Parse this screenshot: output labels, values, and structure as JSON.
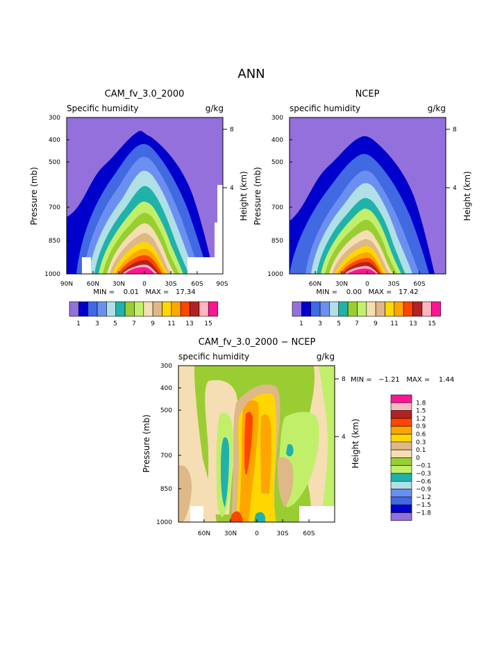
{
  "page": {
    "title": "ANN"
  },
  "colors": {
    "bg": "#9370db",
    "levels": [
      "#9370db",
      "#0000cd",
      "#4169e1",
      "#6b8ff0",
      "#b0e0e6",
      "#20b2aa",
      "#9acd32",
      "#c1ef6a",
      "#f5deb3",
      "#deb887",
      "#ffd700",
      "#ffa500",
      "#ff4500",
      "#b22222",
      "#ffb6c1",
      "#ff1493"
    ],
    "diff_colors": [
      "#9370db",
      "#0000cd",
      "#4169e1",
      "#6b8ff0",
      "#b0e0e6",
      "#20b2aa",
      "#c1ef6a",
      "#9acd32",
      "#f5deb3",
      "#deb887",
      "#ffd700",
      "#ffa500",
      "#ff4500",
      "#b22222",
      "#ffb6c1",
      "#ff1493"
    ]
  },
  "panels": [
    {
      "title": "CAM_fv_3.0_2000",
      "variable": "Specific humidity",
      "units": "g/kg",
      "y_label": "Pressure (mb)",
      "y2_label": "Height (km)",
      "stats": "MIN =    0.01   MAX =   17.34",
      "pressure_ticks": [
        "300",
        "400",
        "500",
        "700",
        "850",
        "1000"
      ],
      "height_ticks": [
        "8",
        "4"
      ],
      "lat_ticks": [
        "90N",
        "60N",
        "30N",
        "0",
        "30S",
        "60S",
        "90S"
      ]
    },
    {
      "title": "NCEP",
      "variable": "specific humidity",
      "units": "g/kg",
      "y_label": "Pressure (mb)",
      "y2_label": "Height (km)",
      "stats": "MIN =    0.00   MAX =   17.42",
      "pressure_ticks": [
        "300",
        "400",
        "500",
        "700",
        "850",
        "1000"
      ],
      "height_ticks": [
        "8",
        "4"
      ],
      "lat_ticks": [
        "60N",
        "30N",
        "0",
        "30S",
        "60S"
      ]
    },
    {
      "title": "CAM_fv_3.0_2000 − NCEP",
      "variable": "specific humidity",
      "units": "g/kg",
      "y_label": "Pressure (mb)",
      "y2_label": "Height (km)",
      "stats": "MIN =   −1.21   MAX =    1.44",
      "pressure_ticks": [
        "300",
        "400",
        "500",
        "700",
        "850",
        "1000"
      ],
      "height_ticks": [
        "8",
        "4"
      ],
      "lat_ticks": [
        "60N",
        "30N",
        "0",
        "30S",
        "60S"
      ]
    }
  ],
  "legends": {
    "field_labels": [
      "1",
      "3",
      "5",
      "7",
      "9",
      "11",
      "13",
      "15"
    ],
    "diff_labels": [
      "1.8",
      "1.5",
      "1.2",
      "0.9",
      "0.6",
      "0.3",
      "0.1",
      "0",
      "−0.1",
      "−0.3",
      "−0.6",
      "−0.9",
      "−1.2",
      "−1.5",
      "−1.8"
    ]
  },
  "chart_data": [
    {
      "type": "heatmap",
      "title": "CAM_fv_3.0_2000",
      "subtitle": "Specific humidity",
      "units": "g/kg",
      "x_axis": "latitude (90N to 90S)",
      "xlim": [
        90,
        -90
      ],
      "y_axis": "Pressure (mb)",
      "ylim": [
        1000,
        300
      ],
      "y_scale": "log",
      "contour_levels": [
        1,
        2,
        3,
        4,
        5,
        6,
        7,
        8,
        9,
        10,
        11,
        12,
        13,
        14,
        15
      ],
      "min": 0.01,
      "max": 17.34,
      "field_peak": {
        "lat": 5,
        "value": 17.34
      },
      "pressure_of_1gkg_contour": [
        {
          "lat": 80,
          "p": 720
        },
        {
          "lat": 60,
          "p": 620
        },
        {
          "lat": 30,
          "p": 455
        },
        {
          "lat": 5,
          "p": 370
        },
        {
          "lat": -30,
          "p": 480
        },
        {
          "lat": -60,
          "p": 850
        }
      ]
    },
    {
      "type": "heatmap",
      "title": "NCEP",
      "subtitle": "specific humidity",
      "units": "g/kg",
      "x_axis": "latitude",
      "xlim": [
        90,
        -90
      ],
      "y_axis": "Pressure (mb)",
      "ylim": [
        1000,
        300
      ],
      "y_scale": "log",
      "contour_levels": [
        1,
        2,
        3,
        4,
        5,
        6,
        7,
        8,
        9,
        10,
        11,
        12,
        13,
        14,
        15
      ],
      "min": 0.0,
      "max": 17.42,
      "field_peak": {
        "lat": 5,
        "value": 17.42
      },
      "pressure_of_1gkg_contour": [
        {
          "lat": 80,
          "p": 720
        },
        {
          "lat": 60,
          "p": 620
        },
        {
          "lat": 30,
          "p": 460
        },
        {
          "lat": 5,
          "p": 390
        },
        {
          "lat": -30,
          "p": 470
        },
        {
          "lat": -60,
          "p": 850
        }
      ]
    },
    {
      "type": "heatmap",
      "title": "CAM_fv_3.0_2000 − NCEP",
      "subtitle": "specific humidity",
      "units": "g/kg",
      "x_axis": "latitude",
      "xlim": [
        90,
        -90
      ],
      "y_axis": "Pressure (mb)",
      "ylim": [
        1000,
        300
      ],
      "y_scale": "log",
      "contour_levels": [
        -1.8,
        -1.5,
        -1.2,
        -0.9,
        -0.6,
        -0.3,
        -0.1,
        0,
        0.1,
        0.3,
        0.6,
        0.9,
        1.2,
        1.5,
        1.8
      ],
      "min": -1.21,
      "max": 1.44
    }
  ]
}
